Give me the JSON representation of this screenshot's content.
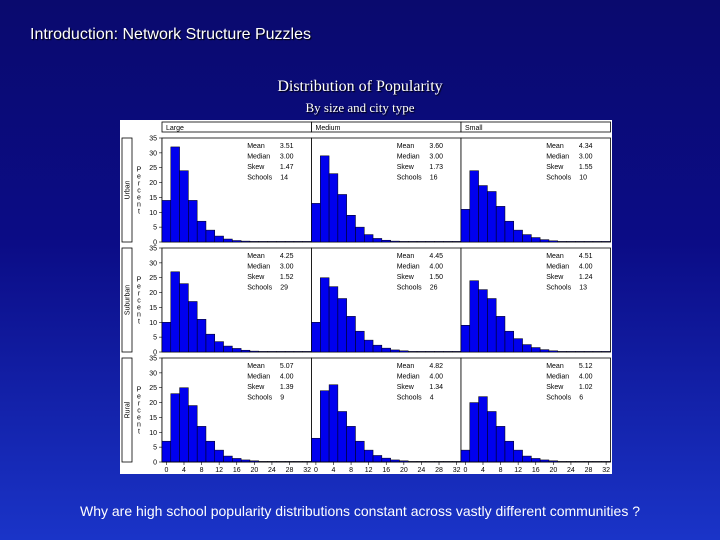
{
  "slide": {
    "title": "Introduction: Network Structure Puzzles",
    "caption": "Why are high school popularity distributions constant across vastly different communities ?"
  },
  "chart_data": {
    "type": "bar",
    "title": "Distribution of Popularity",
    "subtitle": "By size and city type",
    "ylabel_vertical": "Percent",
    "columns": [
      "Large",
      "Medium",
      "Small"
    ],
    "rows": [
      "Urban",
      "Suburban",
      "Rural"
    ],
    "ylim": [
      0,
      35
    ],
    "yticks": [
      0,
      5,
      10,
      15,
      20,
      25,
      30,
      35
    ],
    "xlim": [
      -1,
      33
    ],
    "xticks": [
      0,
      4,
      8,
      12,
      16,
      20,
      24,
      28,
      32
    ],
    "bin_width": 2,
    "bin_starts": [
      -1,
      1,
      3,
      5,
      7,
      9,
      11,
      13,
      15,
      17,
      19,
      21,
      23,
      25,
      27,
      29,
      31
    ],
    "stat_labels": [
      "Mean",
      "Median",
      "Skew",
      "Schools"
    ],
    "bar_color": "#0000ee",
    "panels": [
      {
        "row": "Urban",
        "col": "Large",
        "values": [
          14,
          32,
          24,
          14,
          7,
          4,
          2,
          1,
          0.5,
          0.3,
          0.2,
          0,
          0,
          0,
          0,
          0,
          0
        ],
        "stats": {
          "mean": "3.51",
          "median": "3.00",
          "skew": "1.47",
          "schools": "14"
        }
      },
      {
        "row": "Urban",
        "col": "Medium",
        "values": [
          13,
          29,
          23,
          16,
          9,
          5,
          2.5,
          1.2,
          0.6,
          0.3,
          0.2,
          0,
          0,
          0,
          0,
          0,
          0
        ],
        "stats": {
          "mean": "3.60",
          "median": "3.00",
          "skew": "1.73",
          "schools": "16"
        }
      },
      {
        "row": "Urban",
        "col": "Small",
        "values": [
          11,
          24,
          19,
          17,
          12,
          7,
          4,
          2.5,
          1.5,
          0.8,
          0.4,
          0.2,
          0.1,
          0,
          0,
          0,
          0
        ],
        "stats": {
          "mean": "4.34",
          "median": "3.00",
          "skew": "1.55",
          "schools": "10"
        }
      },
      {
        "row": "Suburban",
        "col": "Large",
        "values": [
          10,
          27,
          23,
          17,
          11,
          6,
          3.5,
          2,
          1.2,
          0.6,
          0.3,
          0.2,
          0,
          0,
          0,
          0,
          0
        ],
        "stats": {
          "mean": "4.25",
          "median": "3.00",
          "skew": "1.52",
          "schools": "29"
        }
      },
      {
        "row": "Suburban",
        "col": "Medium",
        "values": [
          10,
          25,
          22,
          18,
          12,
          7,
          4,
          2.3,
          1.3,
          0.7,
          0.4,
          0.2,
          0.1,
          0,
          0,
          0,
          0
        ],
        "stats": {
          "mean": "4.45",
          "median": "4.00",
          "skew": "1.50",
          "schools": "26"
        }
      },
      {
        "row": "Suburban",
        "col": "Small",
        "values": [
          9,
          24,
          21,
          18,
          12,
          7,
          4.5,
          2.5,
          1.5,
          0.8,
          0.4,
          0.2,
          0.1,
          0,
          0,
          0,
          0
        ],
        "stats": {
          "mean": "4.51",
          "median": "4.00",
          "skew": "1.24",
          "schools": "13"
        }
      },
      {
        "row": "Rural",
        "col": "Large",
        "values": [
          7,
          23,
          25,
          19,
          12,
          7,
          4,
          2,
          1.2,
          0.7,
          0.4,
          0.2,
          0.1,
          0,
          0,
          0,
          0
        ],
        "stats": {
          "mean": "5.07",
          "median": "4.00",
          "skew": "1.39",
          "schools": "9"
        }
      },
      {
        "row": "Rural",
        "col": "Medium",
        "values": [
          8,
          24,
          26,
          17,
          12,
          7,
          4,
          2.2,
          1.3,
          0.7,
          0.4,
          0.2,
          0.1,
          0,
          0,
          0,
          0
        ],
        "stats": {
          "mean": "4.82",
          "median": "4.00",
          "skew": "1.34",
          "schools": "4"
        }
      },
      {
        "row": "Rural",
        "col": "Small",
        "values": [
          4,
          20,
          22,
          17,
          12,
          7,
          4,
          2,
          1.2,
          0.7,
          0.4,
          0.2,
          0.1,
          0,
          0,
          0,
          0
        ],
        "stats": {
          "mean": "5.12",
          "median": "4.00",
          "skew": "1.02",
          "schools": "6"
        }
      }
    ]
  }
}
